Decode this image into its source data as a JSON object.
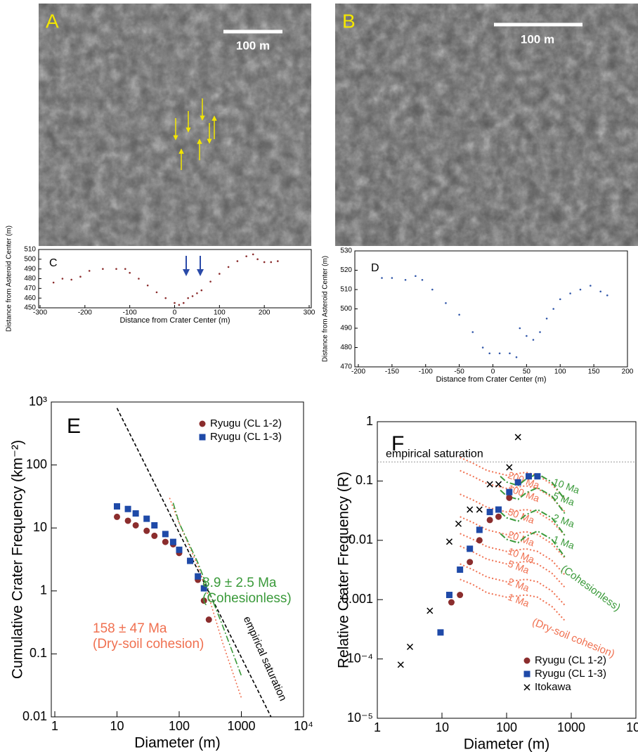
{
  "images": [
    {
      "panel": "A",
      "scale": "100 m"
    },
    {
      "panel": "B",
      "scale": "100 m"
    }
  ],
  "chart_data": [
    {
      "type": "scatter",
      "panel": "C",
      "xlabel": "Distance from Crater Center (m)",
      "ylabel": "Distance from Asteroid Center (m)",
      "xlim": [
        -300,
        300
      ],
      "ylim": [
        450,
        510
      ],
      "xticks": [
        -300,
        -200,
        -100,
        0,
        100,
        200,
        300
      ],
      "yticks": [
        450,
        460,
        470,
        480,
        490,
        500,
        510
      ],
      "color": "#8b2d2d",
      "x": [
        -270,
        -250,
        -230,
        -210,
        -190,
        -160,
        -130,
        -110,
        -100,
        -80,
        -60,
        -40,
        -20,
        0,
        10,
        20,
        30,
        40,
        50,
        60,
        80,
        100,
        120,
        140,
        160,
        175,
        185,
        200,
        215,
        230
      ],
      "values": [
        476,
        480,
        479,
        482,
        488,
        490,
        490,
        490,
        486,
        480,
        473,
        466,
        460,
        455,
        453,
        455,
        460,
        462,
        465,
        468,
        477,
        485,
        492,
        498,
        503,
        505,
        500,
        497,
        497,
        498
      ]
    },
    {
      "type": "scatter",
      "panel": "D",
      "xlabel": "Distance from Crater Center (m)",
      "ylabel": "Distance from Asteroid Center (m)",
      "xlim": [
        -200,
        200
      ],
      "ylim": [
        470,
        530
      ],
      "xticks": [
        -200,
        -150,
        -100,
        -50,
        0,
        50,
        100,
        150,
        200
      ],
      "yticks": [
        470,
        480,
        490,
        500,
        510,
        520,
        530
      ],
      "color": "#2f55a8",
      "x": [
        -165,
        -150,
        -130,
        -115,
        -105,
        -90,
        -70,
        -50,
        -30,
        -15,
        -5,
        10,
        25,
        35,
        40,
        50,
        60,
        70,
        80,
        90,
        100,
        115,
        130,
        145,
        160,
        170
      ],
      "values": [
        516,
        516,
        515,
        517,
        515,
        510,
        503,
        497,
        488,
        480,
        477,
        477,
        477,
        475,
        490,
        486,
        484,
        488,
        495,
        500,
        505,
        508,
        510,
        512,
        509,
        507
      ]
    },
    {
      "type": "scatter",
      "panel": "E",
      "xlabel": "Diameter (m)",
      "ylabel": "Cumulative Crater Frequency (km⁻²)",
      "log": true,
      "xlim": [
        1,
        10000
      ],
      "ylim": [
        0.01,
        1000
      ],
      "xticks": [
        1,
        10,
        100,
        1000,
        {
          "value": 10000,
          "label": "10⁴"
        }
      ],
      "yticks": [
        0.01,
        0.1,
        1,
        10,
        100,
        {
          "value": 1000,
          "label": "10³"
        }
      ],
      "legend": "upper right",
      "series": [
        {
          "name": "Ryugu (CL 1-2)",
          "color": "#8b2d2d",
          "marker": "circle",
          "x": [
            10,
            15,
            20,
            30,
            40,
            60,
            80,
            100,
            150,
            200,
            250,
            300
          ],
          "values": [
            15,
            13,
            11,
            9,
            7.5,
            6,
            5.5,
            4,
            3,
            1.5,
            0.7,
            0.35
          ]
        },
        {
          "name": "Ryugu (CL 1-3)",
          "color": "#1f4aa8",
          "marker": "square",
          "x": [
            10,
            15,
            20,
            30,
            40,
            60,
            80,
            100,
            150,
            200,
            250
          ],
          "values": [
            22,
            20,
            17,
            14,
            11,
            8,
            6,
            4.5,
            3,
            1.7,
            1.1
          ]
        }
      ],
      "lines": [
        {
          "color": "#000000",
          "style": "dashed",
          "x": [
            10,
            3000
          ],
          "values": [
            800,
            0.01
          ]
        },
        {
          "color": "#f07050",
          "style": "dotted",
          "x": [
            70,
            100,
            200,
            300,
            500,
            1000
          ],
          "values": [
            30,
            12,
            2.5,
            0.8,
            0.15,
            0.02
          ]
        },
        {
          "color": "#3a9a3a",
          "style": "dashdot",
          "x": [
            80,
            100,
            200,
            300,
            500,
            1000
          ],
          "values": [
            25,
            12,
            2.8,
            1,
            0.28,
            0.045
          ]
        }
      ],
      "annotations": [
        {
          "text": "8.9 ± 2.5 Ma",
          "color": "#3a9a3a"
        },
        {
          "text": "(Cohesionless)",
          "color": "#3a9a3a"
        },
        {
          "text": "158 ± 47 Ma",
          "color": "#f07050"
        },
        {
          "text": "(Dry-soil cohesion)",
          "color": "#f07050"
        },
        {
          "text": "empirical saturation",
          "color": "#000000"
        }
      ]
    },
    {
      "type": "scatter",
      "panel": "F",
      "xlabel": "Diameter (m)",
      "ylabel": "Relative Crater Frequency (R)",
      "log": true,
      "xlim": [
        1,
        10000
      ],
      "ylim": [
        1e-05,
        1
      ],
      "xticks": [
        1,
        10,
        100,
        1000,
        {
          "value": 10000,
          "label": "10⁴"
        }
      ],
      "yticks": [
        {
          "value": 1e-05,
          "label": "10⁻⁵"
        },
        {
          "value": 0.0001,
          "label": "10⁻⁴"
        },
        0.001,
        0.01,
        0.1,
        1
      ],
      "legend": "lower right",
      "series": [
        {
          "name": "Ryugu (CL 1-2)",
          "color": "#8b2d2d",
          "marker": "circle",
          "x": [
            14,
            19,
            27,
            38,
            55,
            75,
            110
          ],
          "values": [
            0.0009,
            0.0012,
            0.0043,
            0.01,
            0.022,
            0.025,
            0.052
          ]
        },
        {
          "name": "Ryugu (CL 1-3)",
          "color": "#1f4aa8",
          "marker": "square",
          "x": [
            9.5,
            13,
            19,
            27,
            38,
            55,
            75,
            110,
            150,
            220,
            300
          ],
          "values": [
            0.00028,
            0.0012,
            0.0032,
            0.0072,
            0.015,
            0.03,
            0.033,
            0.065,
            0.095,
            0.12,
            0.12
          ]
        },
        {
          "name": "Itokawa",
          "color": "#000000",
          "marker": "cross",
          "x": [
            2.3,
            3.2,
            6.5,
            13,
            18,
            27,
            38,
            55,
            75,
            110,
            150
          ],
          "values": [
            8e-05,
            0.00016,
            0.00065,
            0.0095,
            0.019,
            0.033,
            0.033,
            0.088,
            0.088,
            0.17,
            0.55
          ]
        }
      ],
      "hlines": [
        {
          "value": 0.21,
          "label": "empirical saturation",
          "color": "#999999"
        }
      ],
      "curves": [
        {
          "label": "200 Ma",
          "color": "#f07050",
          "style": "dotted",
          "x": [
            19,
            30,
            50,
            100,
            200,
            300,
            500,
            800
          ],
          "values": [
            0.25,
            0.2,
            0.15,
            0.125,
            0.14,
            0.125,
            0.088,
            0.05
          ]
        },
        {
          "label": "100 Ma",
          "color": "#f07050",
          "style": "dotted",
          "x": [
            19,
            30,
            50,
            100,
            200,
            300,
            500,
            800
          ],
          "values": [
            0.15,
            0.12,
            0.09,
            0.075,
            0.083,
            0.075,
            0.053,
            0.03
          ]
        },
        {
          "label": "50 Ma",
          "color": "#f07050",
          "style": "dotted",
          "x": [
            19,
            30,
            50,
            100,
            200,
            300,
            500,
            800
          ],
          "values": [
            0.06,
            0.048,
            0.036,
            0.03,
            0.033,
            0.03,
            0.021,
            0.012
          ]
        },
        {
          "label": "20 Ma",
          "color": "#f07050",
          "style": "dotted",
          "x": [
            19,
            30,
            50,
            100,
            200,
            300,
            500,
            800
          ],
          "values": [
            0.025,
            0.02,
            0.015,
            0.0125,
            0.014,
            0.0125,
            0.0088,
            0.005
          ]
        },
        {
          "label": "10 Ma",
          "color": "#f07050",
          "style": "dotted",
          "x": [
            19,
            30,
            50,
            100,
            200,
            300,
            500,
            800
          ],
          "values": [
            0.013,
            0.0104,
            0.0078,
            0.0065,
            0.0072,
            0.0065,
            0.0046,
            0.0026
          ]
        },
        {
          "label": "5 Ma",
          "color": "#f07050",
          "style": "dotted",
          "x": [
            19,
            30,
            50,
            100,
            200,
            300,
            500,
            800
          ],
          "values": [
            0.008,
            0.0064,
            0.0048,
            0.004,
            0.0044,
            0.004,
            0.0028,
            0.0016
          ]
        },
        {
          "label": "2 Ma",
          "color": "#f07050",
          "style": "dotted",
          "x": [
            19,
            30,
            50,
            100,
            200,
            300,
            500,
            800
          ],
          "values": [
            0.004,
            0.0032,
            0.0024,
            0.002,
            0.0022,
            0.002,
            0.0014,
            0.0008
          ]
        },
        {
          "label": "1 Ma",
          "color": "#f07050",
          "style": "dotted",
          "x": [
            19,
            30,
            50,
            100,
            200,
            300,
            500,
            800
          ],
          "values": [
            0.0022,
            0.0018,
            0.0013,
            0.0011,
            0.0012,
            0.0011,
            0.00077,
            0.00044
          ]
        },
        {
          "label": "10 Ma",
          "color": "#3a9a3a",
          "style": "dashdot",
          "x": [
            80,
            100,
            150,
            200,
            300,
            500,
            800
          ],
          "values": [
            0.12,
            0.096,
            0.084,
            0.108,
            0.132,
            0.096,
            0.048
          ]
        },
        {
          "label": "5 Ma",
          "color": "#3a9a3a",
          "style": "dashdot",
          "x": [
            80,
            100,
            150,
            200,
            300,
            500,
            800
          ],
          "values": [
            0.07,
            0.056,
            0.049,
            0.063,
            0.077,
            0.056,
            0.028
          ]
        },
        {
          "label": "2 Ma",
          "color": "#3a9a3a",
          "style": "dashdot",
          "x": [
            80,
            100,
            150,
            200,
            300,
            500,
            800
          ],
          "values": [
            0.03,
            0.024,
            0.021,
            0.027,
            0.033,
            0.024,
            0.012
          ]
        },
        {
          "label": "1 Ma",
          "color": "#3a9a3a",
          "style": "dashdot",
          "x": [
            80,
            100,
            150,
            200,
            300,
            500,
            800
          ],
          "values": [
            0.013,
            0.0104,
            0.0091,
            0.0117,
            0.0143,
            0.0104,
            0.0052
          ]
        }
      ],
      "annotations": [
        {
          "text": "(Dry-soil cohesion)",
          "color": "#f07050"
        },
        {
          "text": "(Cohesionless)",
          "color": "#3a9a3a"
        }
      ]
    }
  ]
}
